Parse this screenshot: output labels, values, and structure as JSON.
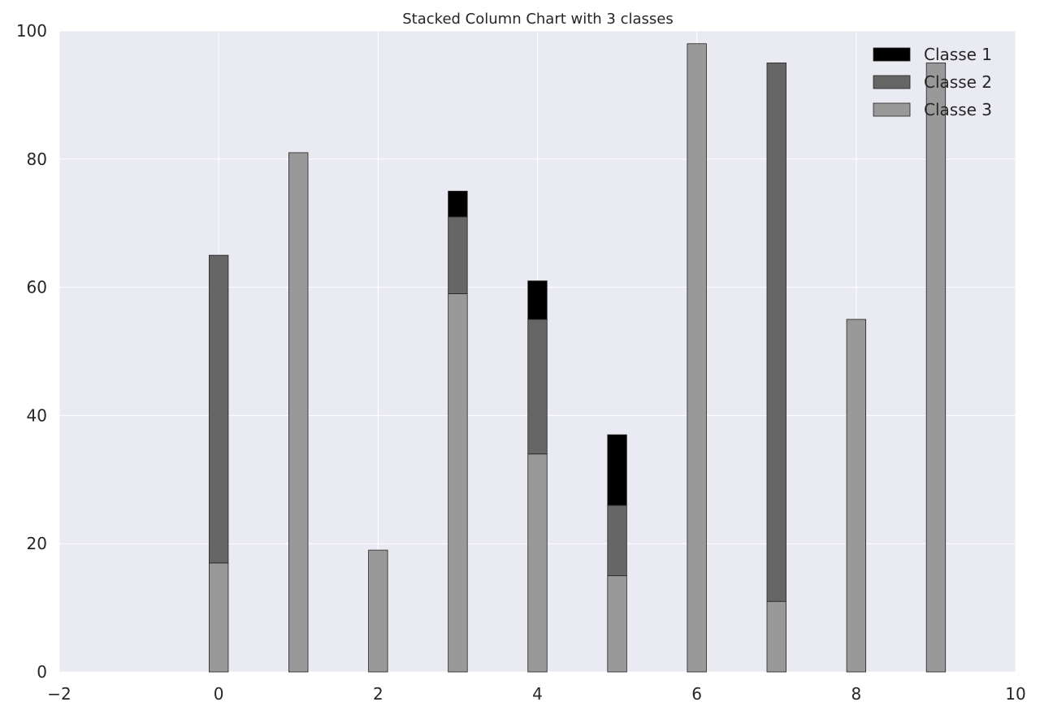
{
  "chart_data": {
    "type": "bar",
    "stacked": true,
    "title": "Stacked Column Chart with 3 classes",
    "xlabel": "",
    "ylabel": "",
    "x": [
      0,
      1,
      2,
      3,
      4,
      5,
      6,
      7,
      8,
      9
    ],
    "xlim": [
      -2,
      10
    ],
    "ylim": [
      0,
      100
    ],
    "xticks": [
      "−2",
      "0",
      "2",
      "4",
      "6",
      "8",
      "10"
    ],
    "xtick_values": [
      -2,
      0,
      2,
      4,
      6,
      8,
      10
    ],
    "yticks": [
      "0",
      "20",
      "40",
      "60",
      "80",
      "100"
    ],
    "ytick_values": [
      0,
      20,
      40,
      60,
      80,
      100
    ],
    "grid": true,
    "legend_position": "top-right",
    "series": [
      {
        "name": "Classe 3",
        "color": "#999999",
        "values": [
          17,
          81,
          19,
          59,
          34,
          15,
          98,
          11,
          55,
          95
        ]
      },
      {
        "name": "Classe 2",
        "color": "#666666",
        "values": [
          48,
          0,
          0,
          12,
          21,
          11,
          0,
          84,
          0,
          0
        ]
      },
      {
        "name": "Classe 1",
        "color": "#000000",
        "values": [
          0,
          0,
          0,
          4,
          6,
          11,
          0,
          0,
          0,
          0
        ]
      }
    ],
    "legend_order": [
      "Classe 1",
      "Classe 2",
      "Classe 3"
    ]
  }
}
